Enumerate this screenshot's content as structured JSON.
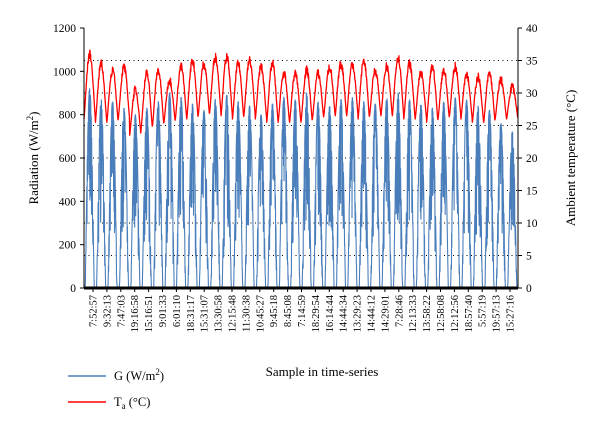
{
  "chart_data": {
    "type": "line",
    "xlabel": "Sample in time-series",
    "ylabel_left": "Radiation (W/m",
    "ylabel_left_sup": "2",
    "ylabel_left_close": ")",
    "ylabel_right": "Ambient temperature (°C)",
    "y_left_range": [
      0,
      1200
    ],
    "y_left_ticks": [
      "0",
      "200",
      "400",
      "600",
      "800",
      "1000",
      "1200"
    ],
    "y_right_range": [
      0,
      40
    ],
    "y_right_ticks": [
      "0",
      "5",
      "10",
      "15",
      "20",
      "25",
      "30",
      "35",
      "40"
    ],
    "x_ticks": [
      "7:52:57",
      "9:32:13",
      "7:47:03",
      "19:16:58",
      "15:16:51",
      "9:01:33",
      "6:01:10",
      "18:31:17",
      "15:31:07",
      "13:30:58",
      "12:15:48",
      "11:30:38",
      "10:45:27",
      "9:45:18",
      "8:45:08",
      "7:14:59",
      "18:29:54",
      "16:14:44",
      "14:44:34",
      "13:29:23",
      "14:44:12",
      "14:29:01",
      "7:28:46",
      "12:13:33",
      "13:58:22",
      "12:58:08",
      "12:12:56",
      "18:57:40",
      "5:57:19",
      "19:57:13",
      "15:27:16"
    ],
    "grid": {
      "horizontal_dotted_right_axis": true
    },
    "legend_placement": "bottom-left",
    "series": [
      {
        "name": "G",
        "unit": "(W/m",
        "unit_sup": "2",
        "unit_close": ")",
        "axis": "left",
        "color": "#4a7ebb",
        "days": 38,
        "day_peaks": [
          920,
          870,
          860,
          830,
          800,
          830,
          860,
          900,
          880,
          850,
          820,
          870,
          890,
          860,
          840,
          800,
          850,
          880,
          870,
          900,
          860,
          840,
          870,
          880,
          860,
          850,
          880,
          900,
          870,
          850,
          830,
          860,
          880,
          870,
          840,
          820,
          760,
          720
        ]
      },
      {
        "name": "T",
        "sub": "a",
        "unit": "(°C)",
        "axis": "right",
        "color": "#ff0000",
        "day_max": [
          36.0,
          34.5,
          33.5,
          34.0,
          30.5,
          33.0,
          33.5,
          32.0,
          34.0,
          35.0,
          34.5,
          35.5,
          35.5,
          34.5,
          35.0,
          34.0,
          34.5,
          33.0,
          33.0,
          33.5,
          33.0,
          34.0,
          34.5,
          34.5,
          35.0,
          33.5,
          34.0,
          35.5,
          34.5,
          33.0,
          34.0,
          33.5,
          34.0,
          33.0,
          32.5,
          33.0,
          32.0,
          31.0
        ],
        "day_min": [
          26.0,
          25.5,
          25.5,
          26.0,
          23.5,
          24.5,
          25.0,
          25.5,
          26.0,
          26.0,
          26.5,
          27.0,
          26.5,
          26.0,
          26.5,
          26.0,
          25.5,
          25.5,
          25.5,
          25.5,
          26.0,
          26.5,
          26.5,
          26.5,
          26.0,
          26.5,
          26.5,
          26.5,
          26.0,
          26.0,
          25.5,
          26.0,
          26.5,
          26.0,
          25.5,
          25.5,
          26.0,
          26.0
        ]
      }
    ]
  }
}
